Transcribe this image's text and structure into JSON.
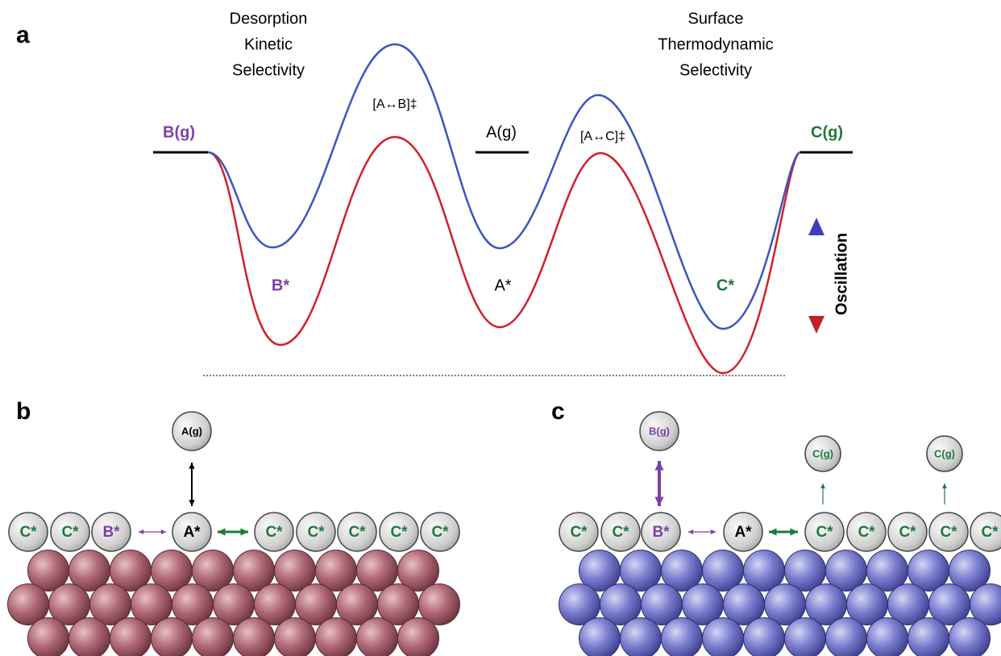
{
  "panel_a": {
    "label": "a",
    "left_title": [
      "Desorption",
      "Kinetic",
      "Selectivity"
    ],
    "right_title": [
      "Surface",
      "Thermodynamic",
      "Selectivity"
    ],
    "states": {
      "b_gas": "B(g)",
      "ts_ab": "[A↔B]‡",
      "a_gas": "A(g)",
      "ts_ac": "[A↔C]‡",
      "c_gas": "C(g)",
      "b_ads": "B*",
      "a_ads": "A*",
      "c_ads": "C*"
    },
    "oscillation": "Oscillation"
  },
  "panel_b": {
    "label": "b",
    "gas": [
      "A(g)"
    ],
    "surface": [
      "C*",
      "C*",
      "B*",
      "A*",
      "C*",
      "C*",
      "C*",
      "C*",
      "C*"
    ]
  },
  "panel_c": {
    "label": "c",
    "gas": [
      "B(g)",
      "C(g)",
      "C(g)"
    ],
    "surface": [
      "C*",
      "C*",
      "B*",
      "A*",
      "C*",
      "C*",
      "C*",
      "C*",
      "C*"
    ]
  }
}
